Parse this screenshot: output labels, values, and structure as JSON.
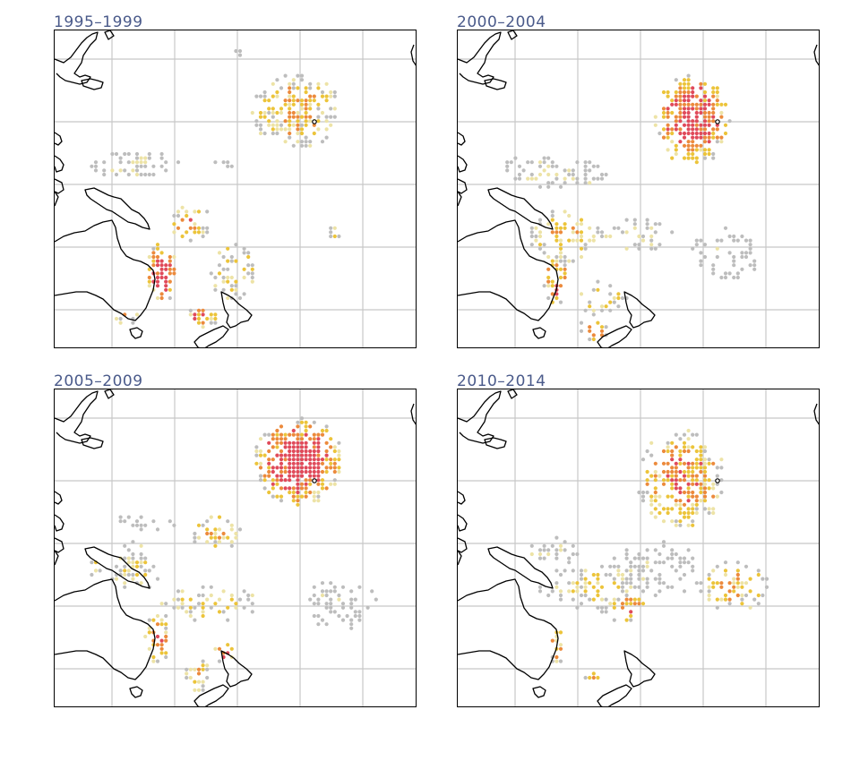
{
  "panels": [
    {
      "title": "1995–1999"
    },
    {
      "title": "2000–2004"
    },
    {
      "title": "2005–2009"
    },
    {
      "title": "2010–2014"
    }
  ],
  "colors": {
    "grid": "#c8c8c8",
    "coast": "#000000",
    "background": "#ffffff",
    "dot_gray": "#bdbdbd",
    "dot_pale": "#ede3a6",
    "dot_yellow": "#ecc43a",
    "dot_orange": "#ec8a3c",
    "dot_red": "#e04a5a",
    "title": "#4a5a8a"
  }
}
